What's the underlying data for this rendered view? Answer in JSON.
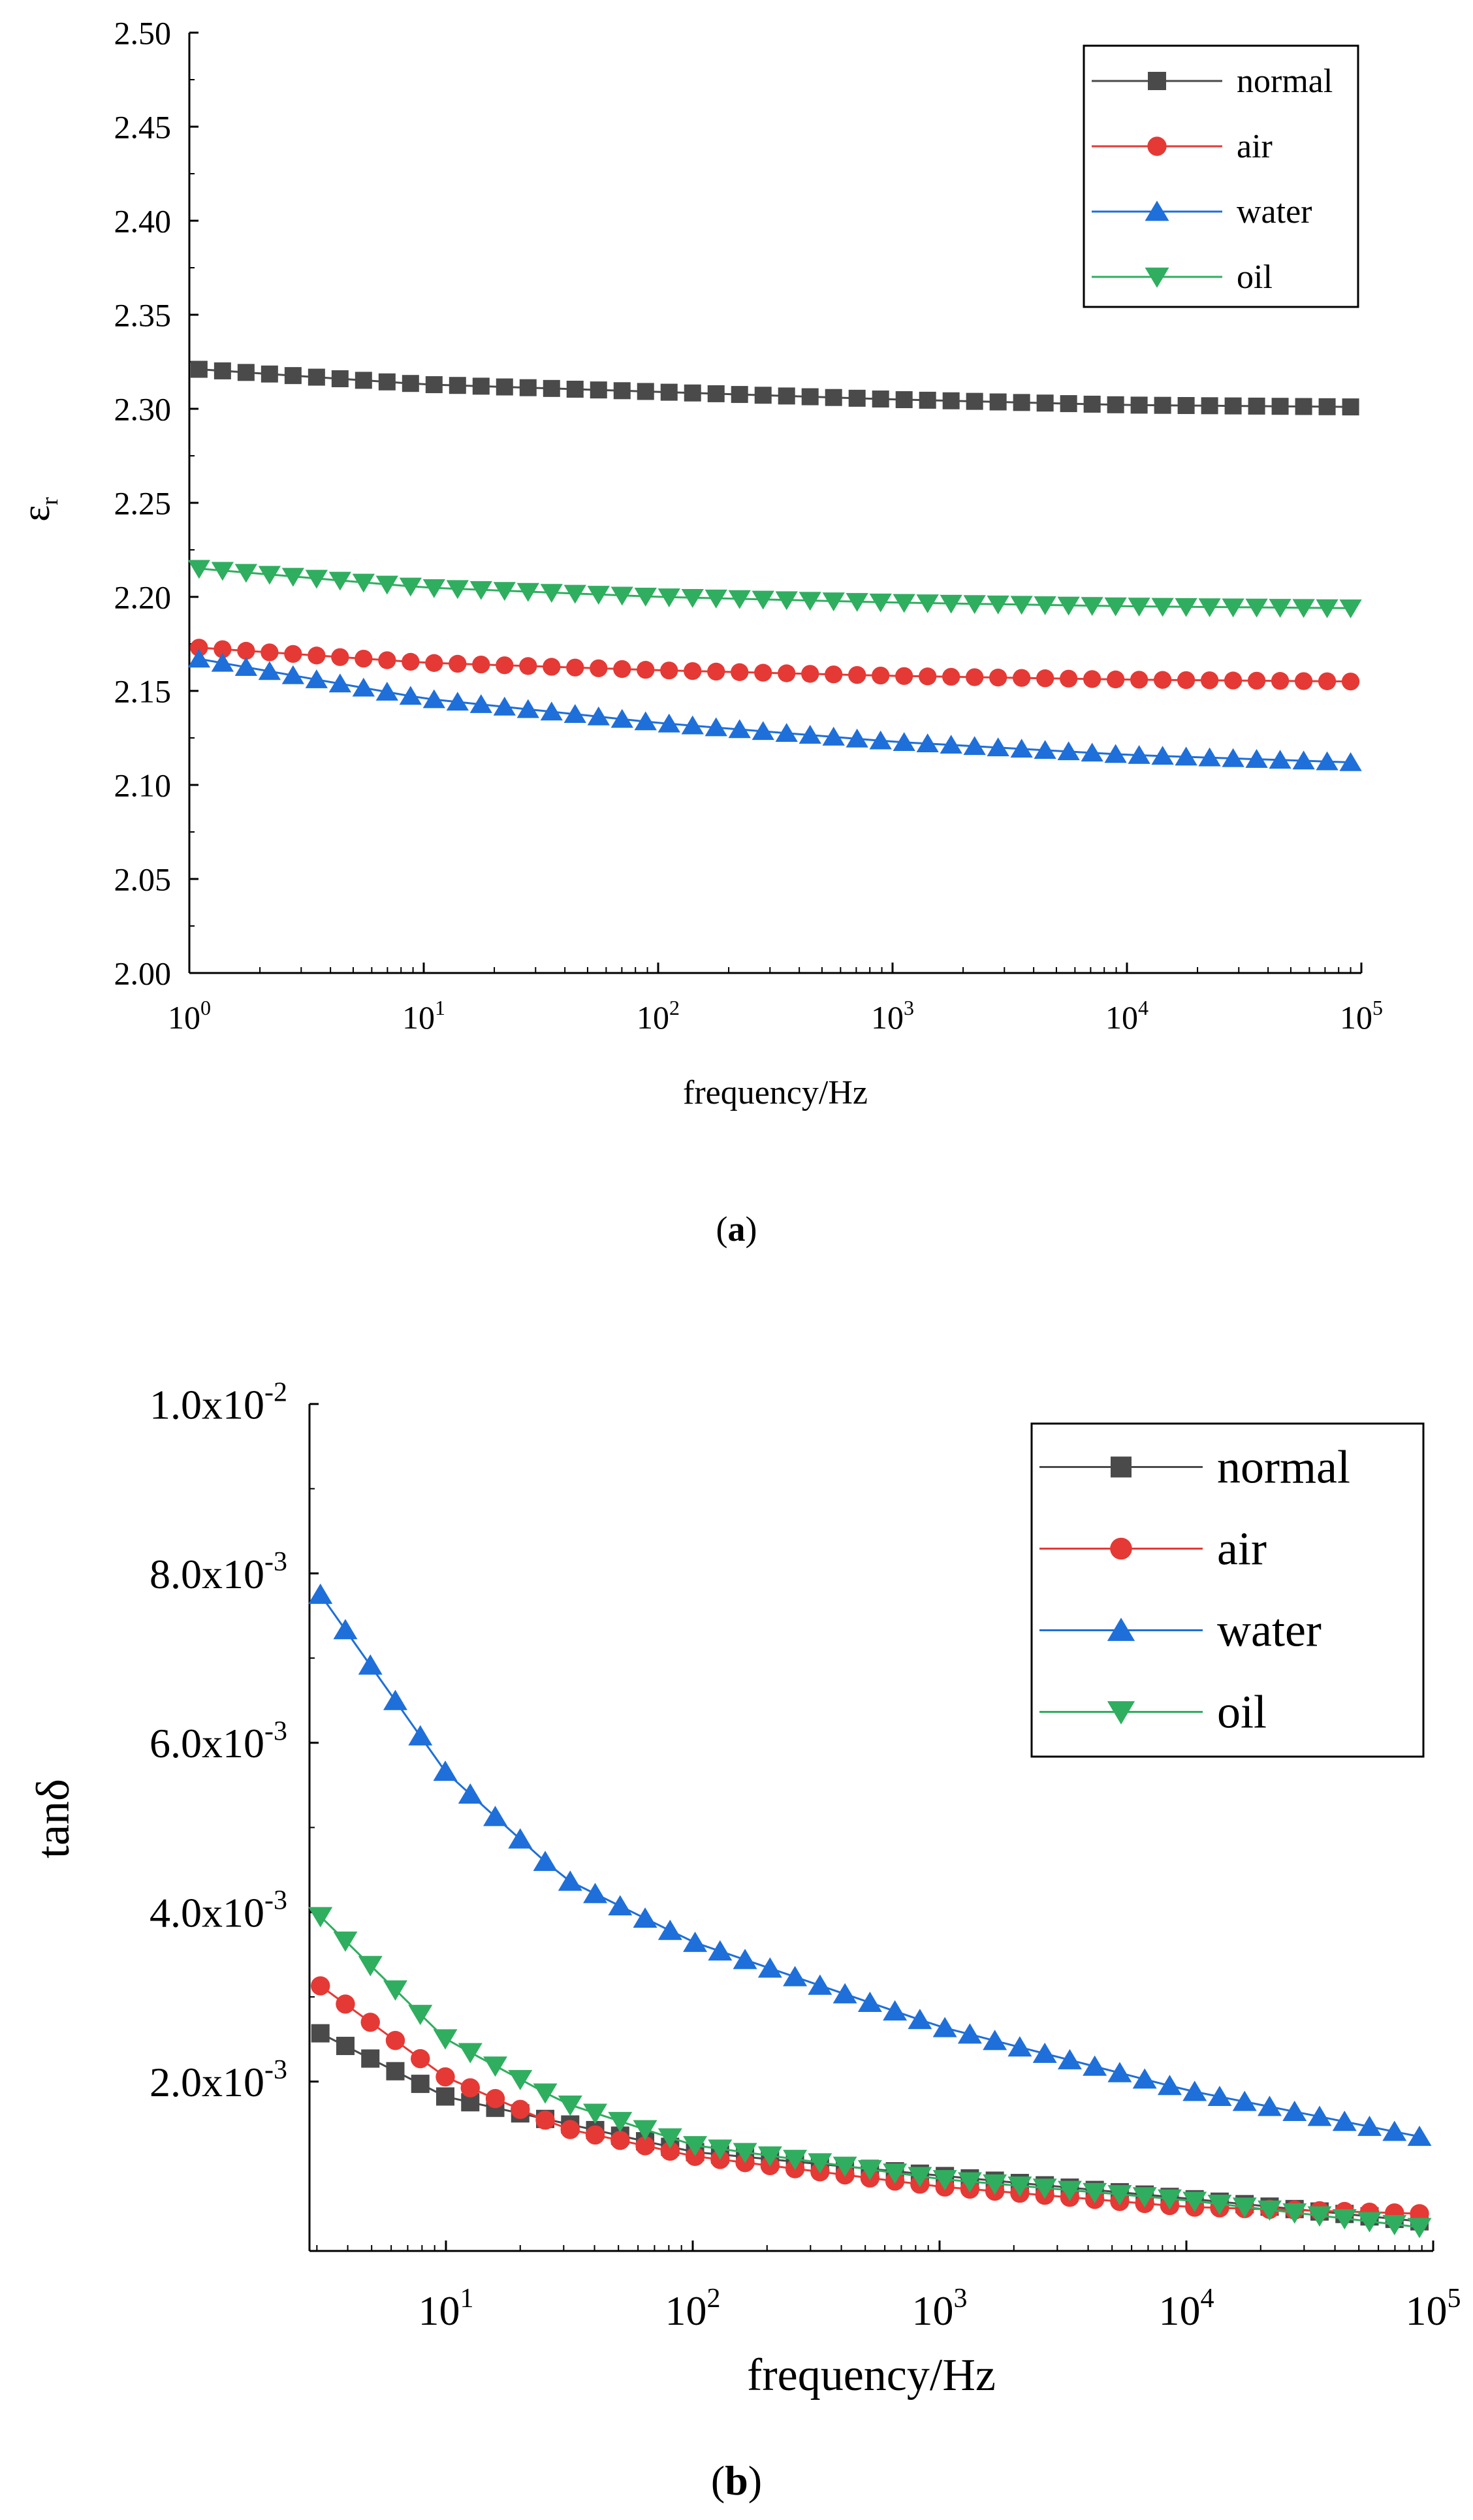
{
  "colors": {
    "normal": "#4a4a4a",
    "air": "#e53935",
    "water": "#1e6fd9",
    "oil": "#2fae5f",
    "axis": "#000000"
  },
  "chart_data": [
    {
      "id": "a",
      "type": "line",
      "caption_letter": "a",
      "xlabel": "frequency/Hz",
      "ylabel": "εr",
      "ylabel_main": "ε",
      "ylabel_sub": "r",
      "xscale": "log",
      "xlim": [
        1,
        100000
      ],
      "ylim": [
        2.0,
        2.5
      ],
      "xticks": [
        {
          "value": 1,
          "base": "10",
          "exp": "0"
        },
        {
          "value": 10,
          "base": "10",
          "exp": "1"
        },
        {
          "value": 100,
          "base": "10",
          "exp": "2"
        },
        {
          "value": 1000,
          "base": "10",
          "exp": "3"
        },
        {
          "value": 10000,
          "base": "10",
          "exp": "4"
        },
        {
          "value": 100000,
          "base": "10",
          "exp": "5"
        }
      ],
      "yticks": [
        {
          "value": 2.0,
          "label": "2.00"
        },
        {
          "value": 2.05,
          "label": "2.05"
        },
        {
          "value": 2.1,
          "label": "2.10"
        },
        {
          "value": 2.15,
          "label": "2.15"
        },
        {
          "value": 2.2,
          "label": "2.20"
        },
        {
          "value": 2.25,
          "label": "2.25"
        },
        {
          "value": 2.3,
          "label": "2.30"
        },
        {
          "value": 2.35,
          "label": "2.35"
        },
        {
          "value": 2.4,
          "label": "2.40"
        },
        {
          "value": 2.45,
          "label": "2.45"
        },
        {
          "value": 2.5,
          "label": "2.50"
        }
      ],
      "legend": {
        "placement": "top-right"
      },
      "n_points": 50,
      "x_range": [
        1.1,
        90000
      ],
      "series": [
        {
          "name": "normal",
          "marker": "square",
          "color_key": "normal",
          "anchors": [
            [
              1.1,
              2.321
            ],
            [
              10,
              2.313
            ],
            [
              100,
              2.309
            ],
            [
              1000,
              2.305
            ],
            [
              10000,
              2.302
            ],
            [
              90000,
              2.301
            ]
          ]
        },
        {
          "name": "air",
          "marker": "circle",
          "color_key": "air",
          "anchors": [
            [
              1.1,
              2.173
            ],
            [
              10,
              2.165
            ],
            [
              100,
              2.161
            ],
            [
              1000,
              2.158
            ],
            [
              10000,
              2.156
            ],
            [
              90000,
              2.155
            ]
          ]
        },
        {
          "name": "water",
          "marker": "triangle-up",
          "color_key": "water",
          "anchors": [
            [
              1.1,
              2.167
            ],
            [
              10,
              2.146
            ],
            [
              100,
              2.133
            ],
            [
              1000,
              2.123
            ],
            [
              10000,
              2.116
            ],
            [
              90000,
              2.112
            ]
          ]
        },
        {
          "name": "oil",
          "marker": "triangle-down",
          "color_key": "oil",
          "anchors": [
            [
              1.1,
              2.215
            ],
            [
              10,
              2.205
            ],
            [
              100,
              2.2
            ],
            [
              1000,
              2.197
            ],
            [
              10000,
              2.195
            ],
            [
              90000,
              2.194
            ]
          ]
        }
      ]
    },
    {
      "id": "b",
      "type": "line",
      "caption_letter": "b",
      "xlabel": "frequency/Hz",
      "ylabel": "tanδ",
      "xscale": "log",
      "xlim": [
        2.8,
        100000
      ],
      "ylim": [
        0,
        0.01
      ],
      "xticks": [
        {
          "value": 10,
          "base": "10",
          "exp": "1"
        },
        {
          "value": 100,
          "base": "10",
          "exp": "2"
        },
        {
          "value": 1000,
          "base": "10",
          "exp": "3"
        },
        {
          "value": 10000,
          "base": "10",
          "exp": "4"
        },
        {
          "value": 100000,
          "base": "10",
          "exp": "5"
        }
      ],
      "yticks": [
        {
          "value": 0.002,
          "base": "2.0x10",
          "exp": "-3"
        },
        {
          "value": 0.004,
          "base": "4.0x10",
          "exp": "-3"
        },
        {
          "value": 0.006,
          "base": "6.0x10",
          "exp": "-3"
        },
        {
          "value": 0.008,
          "base": "8.0x10",
          "exp": "-3"
        },
        {
          "value": 0.01,
          "base": "1.0x10",
          "exp": "-2"
        }
      ],
      "legend": {
        "placement": "top-right"
      },
      "n_points": 45,
      "x_range": [
        3.1,
        88000
      ],
      "series": [
        {
          "name": "normal",
          "marker": "square",
          "color_key": "normal",
          "anchors": [
            [
              3.1,
              0.00257
            ],
            [
              10,
              0.00182
            ],
            [
              100,
              0.00117
            ],
            [
              1000,
              0.00089
            ],
            [
              10000,
              0.00062
            ],
            [
              88000,
              0.00035
            ]
          ]
        },
        {
          "name": "air",
          "marker": "circle",
          "color_key": "air",
          "anchors": [
            [
              3.1,
              0.00313
            ],
            [
              10,
              0.00205
            ],
            [
              30,
              0.00145
            ],
            [
              100,
              0.00112
            ],
            [
              1000,
              0.00076
            ],
            [
              10000,
              0.00052
            ],
            [
              88000,
              0.00044
            ]
          ]
        },
        {
          "name": "water",
          "marker": "triangle-up",
          "color_key": "water",
          "anchors": [
            [
              3.1,
              0.00775
            ],
            [
              10,
              0.00565
            ],
            [
              30,
              0.0044
            ],
            [
              100,
              0.00365
            ],
            [
              1000,
              0.00265
            ],
            [
              10000,
              0.0019
            ],
            [
              88000,
              0.00135
            ]
          ]
        },
        {
          "name": "oil",
          "marker": "triangle-down",
          "color_key": "oil",
          "anchors": [
            [
              3.1,
              0.00395
            ],
            [
              10,
              0.0025
            ],
            [
              30,
              0.00175
            ],
            [
              100,
              0.00125
            ],
            [
              1000,
              0.00085
            ],
            [
              10000,
              0.0006
            ],
            [
              88000,
              0.00028
            ]
          ]
        }
      ]
    }
  ]
}
